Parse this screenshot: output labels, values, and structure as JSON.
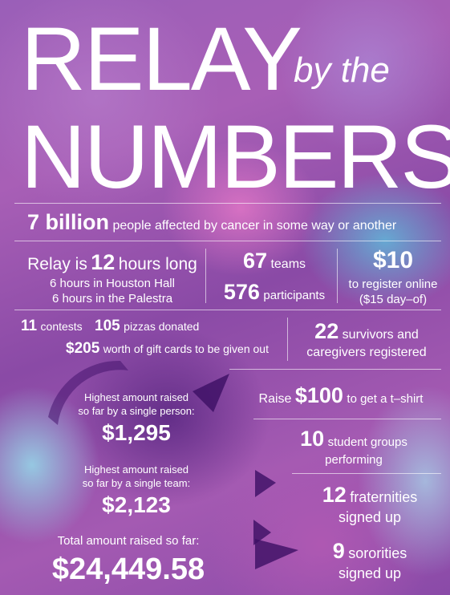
{
  "header": {
    "word1": "RELAY",
    "script": "by the",
    "word2": "NUMBERS"
  },
  "row1": {
    "big": "7 billion",
    "rest": "people affected by cancer in some way or another"
  },
  "relay_hours": {
    "pre": "Relay is",
    "big": "12",
    "post": "hours long",
    "line2": "6 hours in Houston Hall",
    "line3": "6 hours in the Palestra"
  },
  "teams": {
    "big": "67",
    "label": "teams"
  },
  "participants": {
    "big": "576",
    "label": "participants"
  },
  "registration": {
    "big": "$10",
    "line2": "to register online",
    "line3": "($15 day–of)"
  },
  "contests": {
    "big": "11",
    "label": "contests"
  },
  "pizzas": {
    "big": "105",
    "label": "pizzas donated"
  },
  "gift_cards": {
    "big": "$205",
    "label": "worth of gift cards to be given out"
  },
  "survivors": {
    "big": "22",
    "label1": "survivors and",
    "label2": "caregivers registered"
  },
  "tshirt": {
    "pre": "Raise",
    "big": "$100",
    "post": "to get a t–shirt"
  },
  "person": {
    "line1": "Highest amount raised",
    "line2": "so far by a single person:",
    "big": "$1,295"
  },
  "student_groups": {
    "big": "10",
    "label1": "student groups",
    "label2": "performing"
  },
  "team": {
    "line1": "Highest amount raised",
    "line2": "so far by a single team:",
    "big": "$2,123"
  },
  "fraternities": {
    "big": "12",
    "label1": "fraternities",
    "label2": "signed up"
  },
  "total": {
    "line1": "Total amount raised so far:",
    "big": "$24,449.58"
  },
  "sororities": {
    "big": "9",
    "label1": "sororities",
    "label2": "signed up"
  }
}
